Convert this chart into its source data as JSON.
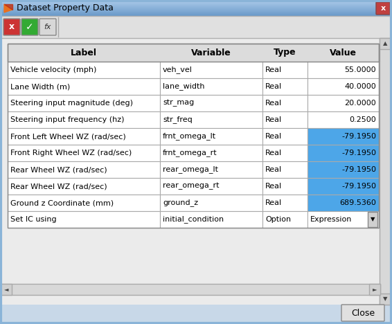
{
  "title": "Dataset Property Data",
  "figsize": [
    5.66,
    4.68
  ],
  "dpi": 100,
  "bg_outer": "#c8d8e8",
  "bg_inner": "#e8e8e8",
  "title_bar_top": "#a8c8e8",
  "title_bar_bottom": "#6898c8",
  "toolbar_bg": "#e8e8e8",
  "table_header": [
    "Label",
    "Variable",
    "Type",
    "Value"
  ],
  "rows": [
    [
      "Vehicle velocity (mph)",
      "veh_vel",
      "Real",
      "55.0000",
      false
    ],
    [
      "Lane Width (m)",
      "lane_width",
      "Real",
      "40.0000",
      false
    ],
    [
      "Steering input magnitude (deg)",
      "str_mag",
      "Real",
      "20.0000",
      false
    ],
    [
      "Steering input frequency (hz)",
      "str_freq",
      "Real",
      "0.2500",
      false
    ],
    [
      "Front Left Wheel WZ (rad/sec)",
      "frnt_omega_lt",
      "Real",
      "-79.1950",
      true
    ],
    [
      "Front Right Wheel WZ (rad/sec)",
      "frnt_omega_rt",
      "Real",
      "-79.1950",
      true
    ],
    [
      "Rear Wheel WZ (rad/sec)",
      "rear_omega_lt",
      "Real",
      "-79.1950",
      true
    ],
    [
      "Rear Wheel WZ (rad/sec)",
      "rear_omega_rt",
      "Real",
      "-79.1950",
      true
    ],
    [
      "Ground z Coordinate (mm)",
      "ground_z",
      "Real",
      "689.5360",
      true
    ],
    [
      "Set IC using",
      "initial_condition",
      "Option",
      "Expression",
      false
    ]
  ],
  "highlight_color": "#4da6e8",
  "cell_bg": "#ffffff",
  "header_bg": "#e8e8e8",
  "cell_border": "#aaaaaa",
  "window_border": "#8ab4d8"
}
